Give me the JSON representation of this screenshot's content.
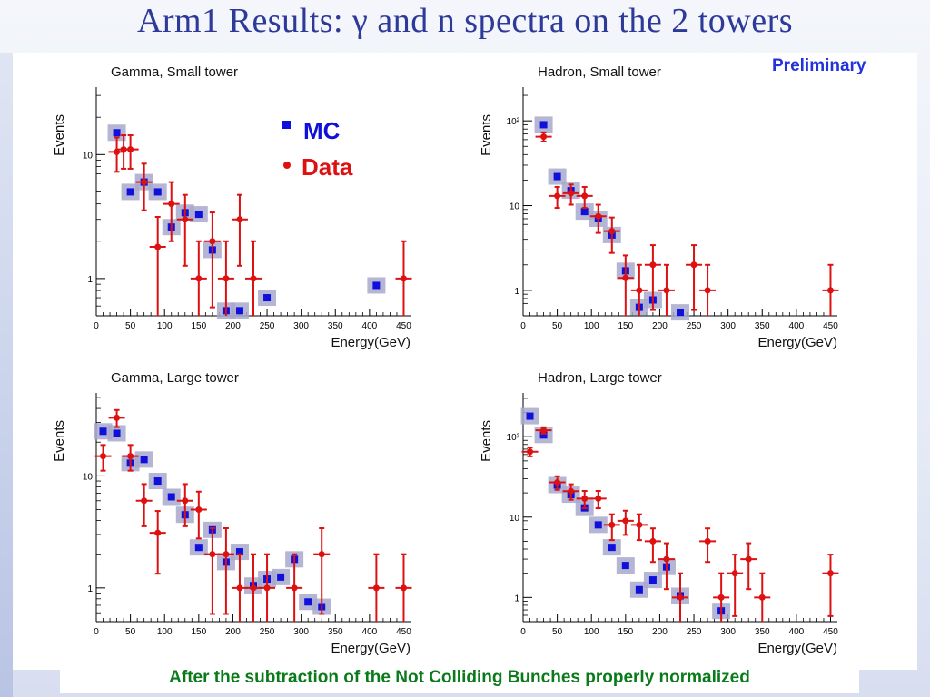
{
  "slide": {
    "title": "Arm1 Results: γ and n spectra on the 2 towers",
    "preliminary": "Preliminary",
    "footer": "After the subtraction of the Not Colliding Bunches properly normalized"
  },
  "legend": {
    "mc": "MC",
    "data": "Data",
    "mc_color": "#1010dd",
    "data_color": "#dd1111"
  },
  "chart_data": [
    {
      "type": "scatter",
      "title": "Gamma, Small tower",
      "xlabel": "Energy(GeV)",
      "ylabel": "Events",
      "xlim": [
        0,
        460
      ],
      "ylim": [
        0.5,
        35
      ],
      "yscale": "log",
      "xticks": [
        0,
        50,
        100,
        150,
        200,
        250,
        300,
        350,
        400,
        450
      ],
      "yticks": [
        1,
        10
      ],
      "ytick_labels": [
        "1",
        "10"
      ],
      "series": [
        {
          "name": "MC",
          "x": [
            30,
            50,
            70,
            90,
            110,
            130,
            150,
            170,
            190,
            210,
            250,
            410
          ],
          "y": [
            15,
            5,
            6,
            5,
            2.6,
            3.4,
            3.3,
            1.7,
            0.55,
            0.55,
            0.7,
            0.88
          ]
        },
        {
          "name": "Data",
          "x": [
            30,
            40,
            50,
            70,
            90,
            110,
            130,
            150,
            170,
            190,
            210,
            230,
            450
          ],
          "y": [
            10.5,
            11,
            11,
            6,
            1.8,
            4,
            3,
            1,
            2,
            1,
            3,
            1,
            1
          ]
        }
      ]
    },
    {
      "type": "scatter",
      "title": "Hadron, Small tower",
      "xlabel": "Energy(GeV)",
      "ylabel": "Events",
      "xlim": [
        0,
        460
      ],
      "ylim": [
        0.5,
        250
      ],
      "yscale": "log",
      "xticks": [
        0,
        50,
        100,
        150,
        200,
        250,
        300,
        350,
        400,
        450
      ],
      "yticks": [
        1,
        10,
        100
      ],
      "ytick_labels": [
        "1",
        "10",
        "10²"
      ],
      "series": [
        {
          "name": "MC",
          "x": [
            30,
            50,
            70,
            90,
            110,
            130,
            150,
            170,
            190,
            230
          ],
          "y": [
            90,
            22,
            15,
            8.5,
            7,
            4.5,
            1.7,
            0.63,
            0.77,
            0.55
          ]
        },
        {
          "name": "Data",
          "x": [
            30,
            50,
            70,
            90,
            110,
            130,
            150,
            170,
            190,
            210,
            250,
            270,
            450
          ],
          "y": [
            65,
            13,
            14,
            13,
            7.5,
            5,
            1.4,
            1,
            2,
            1,
            2,
            1,
            1
          ]
        }
      ]
    },
    {
      "type": "scatter",
      "title": "Gamma, Large tower",
      "xlabel": "Energy(GeV)",
      "ylabel": "Events",
      "xlim": [
        0,
        460
      ],
      "ylim": [
        0.5,
        55
      ],
      "yscale": "log",
      "xticks": [
        0,
        50,
        100,
        150,
        200,
        250,
        300,
        350,
        400,
        450
      ],
      "yticks": [
        1,
        10
      ],
      "ytick_labels": [
        "1",
        "10"
      ],
      "series": [
        {
          "name": "MC",
          "x": [
            10,
            30,
            50,
            70,
            90,
            110,
            130,
            150,
            170,
            190,
            210,
            230,
            250,
            270,
            290,
            310,
            330
          ],
          "y": [
            25,
            24,
            13,
            14,
            9,
            6.5,
            4.5,
            2.3,
            3.3,
            1.7,
            2.1,
            1.05,
            1.2,
            1.25,
            1.8,
            0.75,
            0.68
          ]
        },
        {
          "name": "Data",
          "x": [
            10,
            30,
            50,
            70,
            90,
            130,
            150,
            170,
            190,
            210,
            230,
            250,
            290,
            330,
            410,
            450
          ],
          "y": [
            15,
            33,
            15,
            6,
            3.1,
            6,
            5,
            2,
            2,
            1,
            1,
            1,
            1,
            2,
            1,
            1
          ]
        }
      ]
    },
    {
      "type": "scatter",
      "title": "Hadron, Large tower",
      "xlabel": "Energy(GeV)",
      "ylabel": "Events",
      "xlim": [
        0,
        460
      ],
      "ylim": [
        0.5,
        350
      ],
      "yscale": "log",
      "xticks": [
        0,
        50,
        100,
        150,
        200,
        250,
        300,
        350,
        400,
        450
      ],
      "yticks": [
        1,
        10,
        100
      ],
      "ytick_labels": [
        "1",
        "10",
        "10²"
      ],
      "series": [
        {
          "name": "MC",
          "x": [
            10,
            30,
            50,
            70,
            90,
            110,
            130,
            150,
            170,
            190,
            210,
            230,
            290
          ],
          "y": [
            180,
            105,
            25,
            19,
            13,
            8,
            4.2,
            2.5,
            1.25,
            1.65,
            2.4,
            1.05,
            0.68
          ]
        },
        {
          "name": "Data",
          "x": [
            10,
            30,
            50,
            70,
            90,
            110,
            130,
            150,
            170,
            190,
            210,
            230,
            270,
            290,
            310,
            330,
            350,
            450
          ],
          "y": [
            65,
            120,
            27,
            21,
            17,
            17,
            8,
            9,
            8,
            5,
            3,
            1,
            5,
            1,
            2,
            3,
            1,
            2
          ]
        }
      ]
    }
  ]
}
